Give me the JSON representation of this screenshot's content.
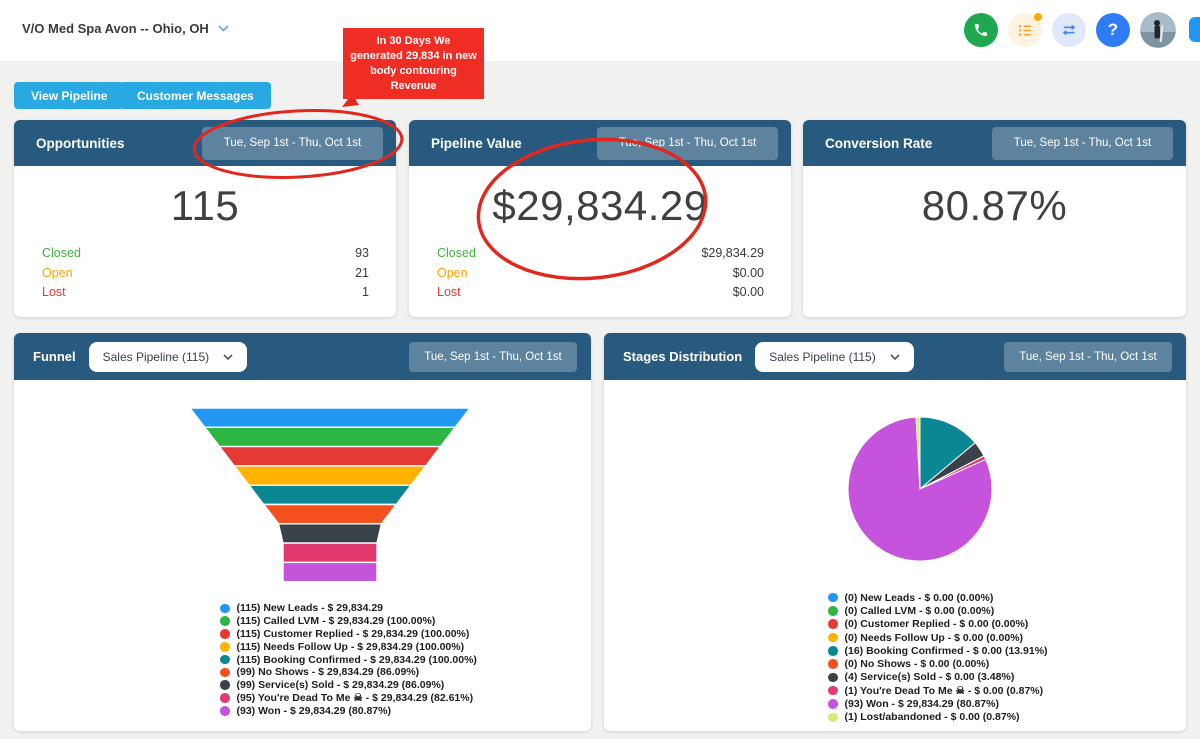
{
  "topbar": {
    "account": "V/O Med Spa Avon -- Ohio, OH",
    "icons": [
      "phone-icon",
      "task-list-icon",
      "switch-arrows-icon",
      "help-icon",
      "avatar"
    ]
  },
  "callout": {
    "text": "In 30 Days We generated 29,834 in new body contouring Revenue",
    "color": "#ee2d24"
  },
  "buttons": {
    "view_pipeline": "View Pipeline",
    "customer_messages": "Customer Messages"
  },
  "date_range": "Tue, Sep 1st - Thu, Oct 1st",
  "cards": {
    "opportunities": {
      "title": "Opportunities",
      "value": "115",
      "stats": [
        {
          "label": "Closed",
          "value": "93",
          "color": "#3cb43c"
        },
        {
          "label": "Open",
          "value": "21",
          "color": "#ffa000"
        },
        {
          "label": "Lost",
          "value": "1",
          "color": "#e6392e"
        }
      ]
    },
    "pipeline_value": {
      "title": "Pipeline Value",
      "value": "$29,834.29",
      "stats": [
        {
          "label": "Closed",
          "value": "$29,834.29",
          "color": "#3cb43c"
        },
        {
          "label": "Open",
          "value": "$0.00",
          "color": "#ffa000"
        },
        {
          "label": "Lost",
          "value": "$0.00",
          "color": "#e6392e"
        }
      ]
    },
    "conversion_rate": {
      "title": "Conversion Rate",
      "value": "80.87%"
    }
  },
  "funnel_card": {
    "title": "Funnel",
    "selector": "Sales Pipeline (115)"
  },
  "stages_card": {
    "title": "Stages Distribution",
    "selector": "Sales Pipeline (115)"
  },
  "chart_data": [
    {
      "type": "funnel",
      "title": "Funnel",
      "pipeline": "Sales Pipeline (115)",
      "date_range": "Tue, Sep 1st - Thu, Oct 1st",
      "stages": [
        "New Leads",
        "Called LVM",
        "Customer Replied",
        "Needs Follow Up",
        "Booking Confirmed",
        "No Shows",
        "Service(s) Sold",
        "You're Dead To Me ☠",
        "Won"
      ],
      "counts": [
        115,
        115,
        115,
        115,
        115,
        99,
        99,
        95,
        93
      ],
      "values_usd": [
        29834.29,
        29834.29,
        29834.29,
        29834.29,
        29834.29,
        29834.29,
        29834.29,
        29834.29,
        29834.29
      ],
      "percentages": [
        null,
        100.0,
        100.0,
        100.0,
        100.0,
        86.09,
        86.09,
        82.61,
        80.87
      ],
      "colors": [
        "#2196f3",
        "#2db742",
        "#e53935",
        "#ffb300",
        "#0b8793",
        "#f4511e",
        "#394149",
        "#e03a6e",
        "#c653dc"
      ],
      "legend": [
        "(115) New Leads - $ 29,834.29",
        "(115) Called LVM - $ 29,834.29 (100.00%)",
        "(115) Customer Replied - $ 29,834.29 (100.00%)",
        "(115) Needs Follow Up - $ 29,834.29 (100.00%)",
        "(115) Booking Confirmed - $ 29,834.29 (100.00%)",
        "(99) No Shows - $ 29,834.29 (86.09%)",
        "(99) Service(s) Sold - $ 29,834.29 (86.09%)",
        "(95) You're Dead To Me ☠ - $ 29,834.29 (82.61%)",
        "(93) Won - $ 29,834.29 (80.87%)"
      ]
    },
    {
      "type": "pie",
      "title": "Stages Distribution",
      "pipeline": "Sales Pipeline (115)",
      "date_range": "Tue, Sep 1st - Thu, Oct 1st",
      "labels": [
        "New Leads",
        "Called LVM",
        "Customer Replied",
        "Needs Follow Up",
        "Booking Confirmed",
        "No Shows",
        "Service(s) Sold",
        "You're Dead To Me ☠",
        "Won",
        "Lost/abandoned"
      ],
      "counts": [
        0,
        0,
        0,
        0,
        16,
        0,
        4,
        1,
        93,
        1
      ],
      "values_usd": [
        0,
        0,
        0,
        0,
        0,
        0,
        0,
        0,
        29834.29,
        0
      ],
      "percentages": [
        0,
        0,
        0,
        0,
        13.91,
        0,
        3.48,
        0.87,
        80.87,
        0.87
      ],
      "colors": [
        "#2196f3",
        "#2db742",
        "#e53935",
        "#ffb300",
        "#0b8793",
        "#f4511e",
        "#394149",
        "#e03a6e",
        "#c653dc",
        "#dce775"
      ],
      "legend": [
        "(0) New Leads - $ 0.00 (0.00%)",
        "(0) Called LVM - $ 0.00 (0.00%)",
        "(0) Customer Replied - $ 0.00 (0.00%)",
        "(0) Needs Follow Up - $ 0.00 (0.00%)",
        "(16) Booking Confirmed - $ 0.00 (13.91%)",
        "(0) No Shows - $ 0.00 (0.00%)",
        "(4) Service(s) Sold - $ 0.00 (3.48%)",
        "(1) You're Dead To Me ☠ - $ 0.00 (0.87%)",
        "(93) Won - $ 29,834.29 (80.87%)",
        "(1) Lost/abandoned - $ 0.00 (0.87%)"
      ]
    }
  ]
}
